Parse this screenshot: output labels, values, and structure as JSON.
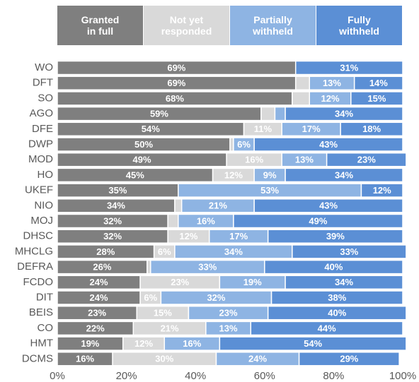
{
  "chart_data": {
    "type": "stacked_barh",
    "categories": [
      "WO",
      "DFT",
      "SO",
      "AGO",
      "DFE",
      "DWP",
      "MOD",
      "HO",
      "UKEF",
      "NIO",
      "MOJ",
      "DHSC",
      "MHCLG",
      "DEFRA",
      "FCDO",
      "DIT",
      "BEIS",
      "CO",
      "HMT",
      "DCMS"
    ],
    "series": [
      {
        "name": "Granted\nin full",
        "color": "#7f7f7f",
        "values": [
          69,
          69,
          68,
          59,
          54,
          50,
          49,
          45,
          35,
          34,
          32,
          32,
          28,
          26,
          24,
          24,
          23,
          22,
          19,
          16
        ],
        "value_labels": [
          "69%",
          "69%",
          "68%",
          "59%",
          "54%",
          "50%",
          "49%",
          "45%",
          "35%",
          "34%",
          "32%",
          "32%",
          "28%",
          "26%",
          "24%",
          "24%",
          "23%",
          "22%",
          "19%",
          "16%"
        ]
      },
      {
        "name": "Not yet\nresponded",
        "color": "#d9d9d9",
        "values": [
          0,
          4,
          5,
          4,
          11,
          1,
          16,
          12,
          0,
          2,
          3,
          12,
          6,
          1,
          23,
          6,
          15,
          21,
          12,
          30
        ],
        "value_labels": [
          null,
          null,
          null,
          null,
          "11%",
          null,
          "16%",
          "12%",
          null,
          null,
          null,
          "12%",
          "6%",
          null,
          "23%",
          "6%",
          "15%",
          "21%",
          "12%",
          "30%"
        ]
      },
      {
        "name": "Partially\nwithheld",
        "color": "#8eb4e3",
        "values": [
          0,
          13,
          12,
          3,
          17,
          6,
          13,
          9,
          53,
          21,
          16,
          17,
          34,
          33,
          19,
          32,
          23,
          13,
          16,
          24
        ],
        "value_labels": [
          null,
          "13%",
          "12%",
          null,
          "17%",
          "6%",
          "13%",
          "9%",
          "53%",
          "21%",
          "16%",
          "17%",
          "34%",
          "33%",
          "19%",
          "32%",
          "23%",
          "13%",
          "16%",
          "24%"
        ]
      },
      {
        "name": "Fully\nwithheld",
        "color": "#5b8fd5",
        "values": [
          31,
          14,
          15,
          34,
          18,
          43,
          23,
          34,
          12,
          43,
          49,
          39,
          33,
          40,
          34,
          38,
          40,
          44,
          54,
          29
        ],
        "value_labels": [
          "31%",
          "14%",
          "15%",
          "34%",
          "18%",
          "43%",
          "23%",
          "34%",
          "12%",
          "43%",
          "49%",
          "39%",
          "33%",
          "40%",
          "34%",
          "38%",
          "40%",
          "44%",
          "54%",
          "29%"
        ]
      }
    ],
    "xlim": [
      0,
      100
    ],
    "xticks": [
      {
        "value": 0,
        "label": "0%"
      },
      {
        "value": 20,
        "label": "20%"
      },
      {
        "value": 40,
        "label": "40%"
      },
      {
        "value": 60,
        "label": "60%"
      },
      {
        "value": 80,
        "label": "80%"
      },
      {
        "value": 100,
        "label": "100%"
      }
    ]
  }
}
